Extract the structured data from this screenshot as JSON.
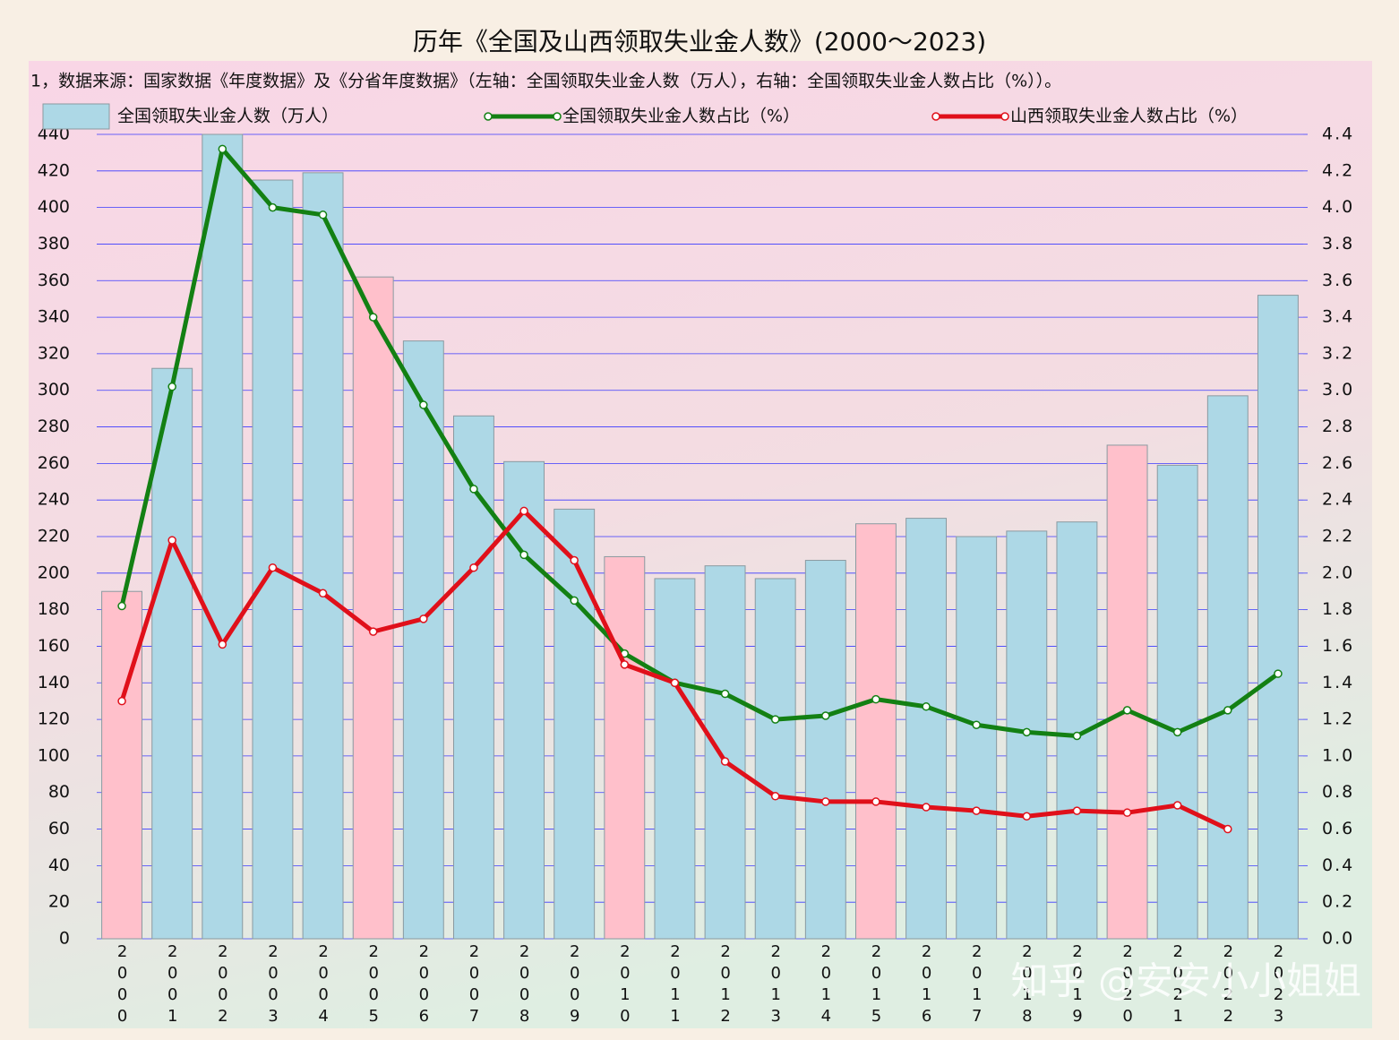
{
  "chart_data": {
    "type": "bar",
    "title": "历年《全国及山西领取失业金人数》(2000～2023)",
    "subtitle": "1，数据来源：国家数据《年度数据》及《分省年度数据》（左轴：全国领取失业金人数（万人），右轴：全国领取失业金人数占比（%））。",
    "watermark": "知乎 @安安小小姐姐",
    "categories": [
      "2000",
      "2001",
      "2002",
      "2003",
      "2004",
      "2005",
      "2006",
      "2007",
      "2008",
      "2009",
      "2010",
      "2011",
      "2012",
      "2013",
      "2014",
      "2015",
      "2016",
      "2017",
      "2018",
      "2019",
      "2020",
      "2021",
      "2022",
      "2023"
    ],
    "series": [
      {
        "name": "全国领取失业金人数（万人）",
        "type": "bar",
        "color": "#add8e6",
        "colors": [
          "#ffc0cb",
          "#add8e6",
          "#add8e6",
          "#add8e6",
          "#add8e6",
          "#ffc0cb",
          "#add8e6",
          "#add8e6",
          "#add8e6",
          "#add8e6",
          "#ffc0cb",
          "#add8e6",
          "#add8e6",
          "#add8e6",
          "#add8e6",
          "#ffc0cb",
          "#add8e6",
          "#add8e6",
          "#add8e6",
          "#add8e6",
          "#ffc0cb",
          "#add8e6",
          "#add8e6",
          "#add8e6"
        ],
        "values": [
          190,
          312,
          440,
          415,
          419,
          362,
          327,
          286,
          261,
          235,
          209,
          197,
          204,
          197,
          207,
          227,
          230,
          220,
          223,
          228,
          270,
          259,
          297,
          352
        ]
      },
      {
        "name": "全国领取失业金人数占比（%）",
        "type": "line",
        "axis": "y2",
        "color": "#138013",
        "values": [
          1.82,
          3.02,
          4.32,
          4.0,
          3.96,
          3.4,
          2.92,
          2.46,
          2.1,
          1.85,
          1.56,
          1.4,
          1.34,
          1.2,
          1.22,
          1.31,
          1.27,
          1.17,
          1.13,
          1.11,
          1.25,
          1.13,
          1.25,
          1.45
        ]
      },
      {
        "name": "山西领取失业金人数占比（%）",
        "type": "line",
        "axis": "y2",
        "color": "#e0101a",
        "values": [
          1.3,
          2.18,
          1.61,
          2.03,
          1.89,
          1.68,
          1.75,
          2.03,
          2.34,
          2.07,
          1.5,
          1.4,
          0.97,
          0.78,
          0.75,
          0.75,
          0.72,
          0.7,
          0.67,
          0.7,
          0.69,
          0.73,
          0.6,
          null
        ]
      }
    ],
    "ylim": [
      0,
      440
    ],
    "yticks": [
      0,
      20,
      40,
      60,
      80,
      100,
      120,
      140,
      160,
      180,
      200,
      220,
      240,
      260,
      280,
      300,
      320,
      340,
      360,
      380,
      400,
      420,
      440
    ],
    "y2lim": [
      0,
      4.4
    ],
    "y2ticks": [
      {
        "value": 0,
        "label": "0.0"
      },
      0.2,
      0.4,
      0.6,
      0.8,
      {
        "value": 1,
        "label": "1.0"
      },
      1.2,
      1.4,
      1.6,
      1.8,
      {
        "value": 2,
        "label": "2.0"
      },
      2.2,
      2.4,
      2.6,
      2.8,
      {
        "value": 3,
        "label": "3.0"
      },
      3.2,
      3.4,
      3.6,
      3.8,
      {
        "value": 4,
        "label": "4.0"
      },
      4.2,
      4.4
    ],
    "grid": true
  }
}
